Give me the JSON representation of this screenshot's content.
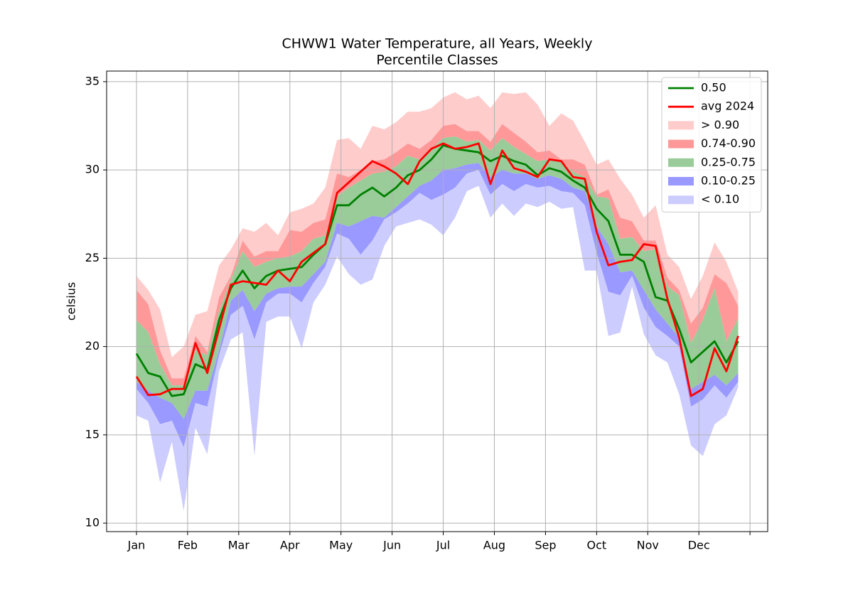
{
  "chart_data": {
    "type": "percentile-bands",
    "title": [
      "CHWW1 Water Temperature, all Years, Weekly",
      "Percentile Classes"
    ],
    "y_label": "celsius",
    "x": [
      1,
      2,
      3,
      4,
      5,
      6,
      7,
      8,
      9,
      10,
      11,
      12,
      13,
      14,
      15,
      16,
      17,
      18,
      19,
      20,
      21,
      22,
      23,
      24,
      25,
      26,
      27,
      28,
      29,
      30,
      31,
      32,
      33,
      34,
      35,
      36,
      37,
      38,
      39,
      40,
      41,
      42,
      43,
      44,
      45,
      46,
      47,
      48,
      49,
      50,
      51,
      52
    ],
    "xlim": [
      -1.53,
      54.5
    ],
    "xticks": [
      {
        "value": 1,
        "label": "Jan"
      },
      {
        "value": 5.333,
        "label": "Feb"
      },
      {
        "value": 9.667,
        "label": "Mar"
      },
      {
        "value": 14,
        "label": "Apr"
      },
      {
        "value": 18.333,
        "label": "May"
      },
      {
        "value": 22.667,
        "label": "Jun"
      },
      {
        "value": 27,
        "label": "Jul"
      },
      {
        "value": 31.333,
        "label": "Aug"
      },
      {
        "value": 35.667,
        "label": "Sep"
      },
      {
        "value": 40,
        "label": "Oct"
      },
      {
        "value": 44.333,
        "label": "Nov"
      },
      {
        "value": 48.667,
        "label": "Dec"
      },
      {
        "value": 53,
        "label": null
      }
    ],
    "ylim": [
      9.52,
      35.6
    ],
    "yticks": [
      10,
      15,
      20,
      25,
      30,
      35
    ],
    "grid": true,
    "legend": "upper right",
    "series": [
      {
        "name": "0.50",
        "color": "#008000",
        "values": [
          19.6,
          18.5,
          18.3,
          17.2,
          17.3,
          19.0,
          18.7,
          21.5,
          23.3,
          24.3,
          23.3,
          24.0,
          24.3,
          24.4,
          24.5,
          25.2,
          25.8,
          28.0,
          28.0,
          28.6,
          29.0,
          28.5,
          29.0,
          29.7,
          30.0,
          30.6,
          31.4,
          31.2,
          31.1,
          31.0,
          30.5,
          30.8,
          30.5,
          30.3,
          29.7,
          30.1,
          29.9,
          29.4,
          29.0,
          27.8,
          27.1,
          25.2,
          25.2,
          24.8,
          22.8,
          22.6,
          21.0,
          19.1,
          19.7,
          20.3,
          19.1,
          20.3
        ]
      },
      {
        "name": "avg 2024",
        "color": "#ff0000",
        "values": [
          18.3,
          17.25,
          17.3,
          17.6,
          17.6,
          20.2,
          18.5,
          21.0,
          23.5,
          23.7,
          23.6,
          23.5,
          24.3,
          23.7,
          24.8,
          25.3,
          25.8,
          28.7,
          29.3,
          29.9,
          30.5,
          30.2,
          29.8,
          29.2,
          30.5,
          31.2,
          31.5,
          31.2,
          31.3,
          31.5,
          29.2,
          31.1,
          30.1,
          29.9,
          29.6,
          30.6,
          30.5,
          29.6,
          29.5,
          26.5,
          24.6,
          24.8,
          24.9,
          25.8,
          25.7,
          22.7,
          20.5,
          17.2,
          17.6,
          19.9,
          18.6,
          20.6
        ]
      }
    ],
    "bands": [
      {
        "name": "> 0.90",
        "color": "#ffcccc",
        "lower": [
          23.2,
          22.4,
          19.8,
          18.2,
          18.2,
          20.6,
          19.7,
          22.8,
          24.0,
          26.0,
          25.1,
          25.4,
          25.4,
          26.6,
          26.5,
          27.0,
          27.2,
          29.8,
          29.6,
          30.0,
          30.5,
          30.6,
          31.0,
          31.5,
          31.2,
          31.7,
          32.5,
          32.6,
          32.2,
          32.2,
          31.6,
          32.6,
          32.1,
          31.6,
          31.0,
          31.1,
          30.6,
          30.6,
          30.3,
          28.6,
          28.9,
          27.3,
          27.1,
          26.0,
          26.0,
          23.9,
          23.2,
          21.3,
          22.2,
          24.1,
          23.6,
          22.3
        ],
        "upper": [
          24.0,
          23.2,
          22.1,
          19.4,
          20.0,
          21.8,
          22.0,
          24.6,
          25.5,
          26.7,
          26.5,
          27.0,
          26.3,
          27.6,
          27.8,
          28.1,
          29.0,
          31.7,
          31.8,
          31.2,
          32.5,
          32.3,
          32.7,
          33.3,
          33.3,
          33.5,
          34.1,
          34.4,
          34.0,
          34.2,
          33.5,
          34.4,
          34.3,
          34.4,
          33.7,
          32.5,
          33.2,
          32.8,
          31.6,
          30.3,
          30.6,
          29.5,
          28.6,
          27.3,
          28.0,
          25.2,
          24.5,
          22.7,
          24.0,
          25.9,
          24.8,
          23.1
        ]
      },
      {
        "name": "0.74-0.90",
        "color": "#ff9999",
        "lower": [
          21.5,
          20.8,
          19.0,
          17.8,
          17.8,
          19.8,
          19.5,
          22.0,
          23.8,
          25.4,
          24.5,
          24.8,
          25.0,
          25.1,
          25.4,
          26.1,
          26.3,
          28.5,
          29.0,
          29.4,
          29.8,
          29.9,
          30.2,
          30.8,
          30.6,
          31.2,
          31.8,
          31.9,
          31.6,
          31.7,
          31.1,
          31.8,
          31.3,
          30.9,
          30.5,
          30.6,
          30.5,
          29.9,
          29.6,
          28.5,
          28.4,
          26.1,
          26.2,
          25.4,
          25.5,
          23.4,
          22.9,
          20.2,
          21.5,
          23.3,
          20.3,
          21.6
        ],
        "upper": [
          23.2,
          22.4,
          19.8,
          18.2,
          18.2,
          20.6,
          19.7,
          22.8,
          24.0,
          26.0,
          25.1,
          25.4,
          25.4,
          26.6,
          26.5,
          27.0,
          27.2,
          29.8,
          29.6,
          30.0,
          30.5,
          30.6,
          31.0,
          31.5,
          31.2,
          31.7,
          32.5,
          32.6,
          32.2,
          32.2,
          31.6,
          32.6,
          32.1,
          31.6,
          31.0,
          31.1,
          30.6,
          30.6,
          30.3,
          28.6,
          28.9,
          27.3,
          27.1,
          26.0,
          26.0,
          23.9,
          23.2,
          21.3,
          22.2,
          24.1,
          23.6,
          22.3
        ]
      },
      {
        "name": "0.25-0.75",
        "color": "#99cc99",
        "lower": [
          18.0,
          17.5,
          17.1,
          16.8,
          15.9,
          17.5,
          17.5,
          19.8,
          22.6,
          23.2,
          22.0,
          23.0,
          23.3,
          23.4,
          23.4,
          24.1,
          24.8,
          27.0,
          26.8,
          27.1,
          27.4,
          27.3,
          27.9,
          28.5,
          29.1,
          29.4,
          30.0,
          30.1,
          30.3,
          30.4,
          29.6,
          30.0,
          29.8,
          29.8,
          29.5,
          29.7,
          29.5,
          29.0,
          28.8,
          26.8,
          25.8,
          24.2,
          24.3,
          23.2,
          22.1,
          21.3,
          20.5,
          17.6,
          18.0,
          18.4,
          17.8,
          18.5
        ],
        "upper": [
          21.5,
          20.8,
          19.0,
          17.8,
          17.8,
          19.8,
          19.5,
          22.0,
          23.8,
          25.4,
          24.5,
          24.8,
          25.0,
          25.1,
          25.4,
          26.1,
          26.3,
          28.5,
          29.0,
          29.4,
          29.8,
          29.9,
          30.2,
          30.8,
          30.6,
          31.2,
          31.8,
          31.9,
          31.6,
          31.7,
          31.1,
          31.8,
          31.3,
          30.9,
          30.5,
          30.6,
          30.5,
          29.9,
          29.6,
          28.5,
          28.4,
          26.1,
          26.2,
          25.4,
          25.5,
          23.4,
          22.9,
          20.2,
          21.5,
          23.3,
          20.3,
          21.6
        ]
      },
      {
        "name": "0.10-0.25",
        "color": "#9999ff",
        "lower": [
          17.6,
          16.8,
          15.6,
          15.8,
          14.3,
          16.8,
          16.6,
          19.5,
          21.8,
          22.3,
          20.4,
          22.5,
          23.0,
          23.0,
          22.5,
          23.6,
          24.5,
          26.4,
          26.1,
          25.2,
          26.0,
          27.2,
          27.6,
          28.1,
          28.7,
          28.3,
          28.6,
          29.0,
          29.8,
          30.0,
          28.6,
          29.2,
          28.8,
          29.2,
          29.0,
          29.1,
          28.8,
          28.7,
          28.0,
          25.3,
          23.1,
          22.9,
          24.0,
          22.2,
          21.1,
          20.6,
          20.0,
          16.6,
          17.0,
          17.8,
          17.1,
          18.0
        ],
        "upper": [
          18.0,
          17.5,
          17.1,
          16.8,
          15.9,
          17.5,
          17.5,
          19.8,
          22.6,
          23.2,
          22.0,
          23.0,
          23.3,
          23.4,
          23.4,
          24.1,
          24.8,
          27.0,
          26.8,
          27.1,
          27.4,
          27.3,
          27.9,
          28.5,
          29.1,
          29.4,
          30.0,
          30.1,
          30.3,
          30.4,
          29.6,
          30.0,
          29.8,
          29.8,
          29.5,
          29.7,
          29.5,
          29.0,
          28.8,
          26.8,
          25.8,
          24.2,
          24.3,
          23.2,
          22.1,
          21.3,
          20.5,
          17.6,
          18.0,
          18.4,
          17.8,
          18.5
        ]
      },
      {
        "name": "< 0.10",
        "color": "#ccccff",
        "lower": [
          16.1,
          15.8,
          12.3,
          14.6,
          10.7,
          15.4,
          13.9,
          18.6,
          20.4,
          20.8,
          13.8,
          21.4,
          21.7,
          21.7,
          19.9,
          22.5,
          23.5,
          25.1,
          24.1,
          23.5,
          23.8,
          25.7,
          26.8,
          27.0,
          27.2,
          26.9,
          26.3,
          27.3,
          28.8,
          29.1,
          27.3,
          28.1,
          27.4,
          28.1,
          27.9,
          28.2,
          27.8,
          27.9,
          24.3,
          24.3,
          20.6,
          20.8,
          23.4,
          20.7,
          19.5,
          19.1,
          17.3,
          14.4,
          13.8,
          15.6,
          16.1,
          17.7
        ],
        "upper": [
          17.6,
          16.8,
          15.6,
          15.8,
          14.3,
          16.8,
          16.6,
          19.5,
          21.8,
          22.3,
          20.4,
          22.5,
          23.0,
          23.0,
          22.5,
          23.6,
          24.5,
          26.4,
          26.1,
          25.2,
          26.0,
          27.2,
          27.6,
          28.1,
          28.7,
          28.3,
          28.6,
          29.0,
          29.8,
          30.0,
          28.6,
          29.2,
          28.8,
          29.2,
          29.0,
          29.1,
          28.8,
          28.7,
          28.0,
          25.3,
          23.1,
          22.9,
          24.0,
          22.2,
          21.1,
          20.6,
          20.0,
          16.6,
          17.0,
          17.8,
          17.1,
          18.0
        ]
      }
    ]
  }
}
